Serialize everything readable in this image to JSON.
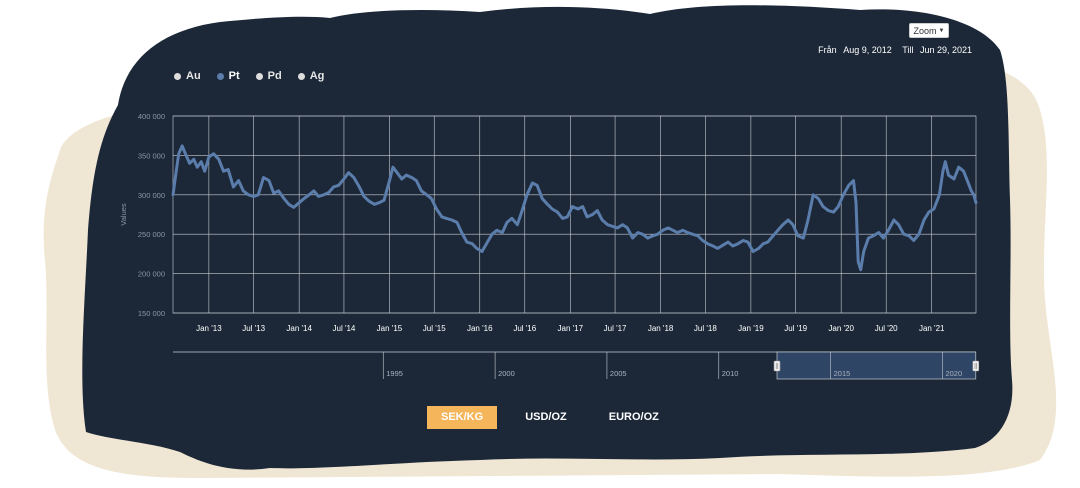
{
  "zoom_button": {
    "label": "Zoom"
  },
  "range": {
    "from_label": "Från",
    "from_value": "Aug 9, 2012",
    "to_label": "Till",
    "to_value": "Jun 29, 2021"
  },
  "legend": [
    {
      "label": "Au",
      "color": "#dddddd",
      "active": false
    },
    {
      "label": "Pt",
      "color": "#5b7dab",
      "active": true
    },
    {
      "label": "Pd",
      "color": "#dddddd",
      "active": false
    },
    {
      "label": "Ag",
      "color": "#dddddd",
      "active": false
    }
  ],
  "unit_tabs": [
    {
      "label": "SEK/KG",
      "active": true
    },
    {
      "label": "USD/OZ",
      "active": false
    },
    {
      "label": "EURO/OZ",
      "active": false
    }
  ],
  "colors": {
    "panel": "#1c2838",
    "series": "#5b7dab",
    "accent": "#f5b55a",
    "cream": "#efe6d3",
    "navigator_fill": "#2f4565"
  },
  "chart_data": {
    "type": "line",
    "ylabel": "Values",
    "ylim": [
      150000,
      400000
    ],
    "y_ticks": [
      {
        "value": 400000,
        "label": "400 000"
      },
      {
        "value": 350000,
        "label": "350 000"
      },
      {
        "value": 300000,
        "label": "300 000"
      },
      {
        "value": 250000,
        "label": "250 000"
      },
      {
        "value": 200000,
        "label": "200 000"
      },
      {
        "value": 150000,
        "label": "150 000"
      }
    ],
    "xlim": [
      "2012-08-09",
      "2021-06-29"
    ],
    "x_ticks": [
      {
        "date": "2013-01-01",
        "label": "Jan '13"
      },
      {
        "date": "2013-07-01",
        "label": "Jul '13"
      },
      {
        "date": "2014-01-01",
        "label": "Jan '14"
      },
      {
        "date": "2014-07-01",
        "label": "Jul '14"
      },
      {
        "date": "2015-01-01",
        "label": "Jan '15"
      },
      {
        "date": "2015-07-01",
        "label": "Jul '15"
      },
      {
        "date": "2016-01-01",
        "label": "Jan '16"
      },
      {
        "date": "2016-07-01",
        "label": "Jul '16"
      },
      {
        "date": "2017-01-01",
        "label": "Jan '17"
      },
      {
        "date": "2017-07-01",
        "label": "Jul '17"
      },
      {
        "date": "2018-01-01",
        "label": "Jan '18"
      },
      {
        "date": "2018-07-01",
        "label": "Jul '18"
      },
      {
        "date": "2019-01-01",
        "label": "Jan '19"
      },
      {
        "date": "2019-07-01",
        "label": "Jul '19"
      },
      {
        "date": "2020-01-01",
        "label": "Jan '20"
      },
      {
        "date": "2020-07-01",
        "label": "Jul '20"
      },
      {
        "date": "2021-01-01",
        "label": "Jan '21"
      }
    ],
    "grid": true,
    "legend_position": "top-left",
    "series": [
      {
        "name": "Pt",
        "color": "#5b7dab",
        "points": [
          [
            "2012-08-09",
            300000
          ],
          [
            "2012-08-20",
            325000
          ],
          [
            "2012-09-01",
            352000
          ],
          [
            "2012-09-15",
            362000
          ],
          [
            "2012-10-01",
            350000
          ],
          [
            "2012-10-15",
            340000
          ],
          [
            "2012-11-01",
            345000
          ],
          [
            "2012-11-15",
            335000
          ],
          [
            "2012-12-01",
            342000
          ],
          [
            "2012-12-15",
            330000
          ],
          [
            "2013-01-01",
            348000
          ],
          [
            "2013-01-20",
            352000
          ],
          [
            "2013-02-10",
            345000
          ],
          [
            "2013-03-01",
            330000
          ],
          [
            "2013-03-20",
            332000
          ],
          [
            "2013-04-10",
            310000
          ],
          [
            "2013-05-01",
            318000
          ],
          [
            "2013-05-20",
            305000
          ],
          [
            "2013-06-10",
            300000
          ],
          [
            "2013-07-01",
            298000
          ],
          [
            "2013-07-20",
            300000
          ],
          [
            "2013-08-10",
            322000
          ],
          [
            "2013-09-01",
            318000
          ],
          [
            "2013-09-20",
            302000
          ],
          [
            "2013-10-10",
            305000
          ],
          [
            "2013-11-01",
            295000
          ],
          [
            "2013-11-20",
            288000
          ],
          [
            "2013-12-10",
            284000
          ],
          [
            "2014-01-01",
            290000
          ],
          [
            "2014-01-20",
            295000
          ],
          [
            "2014-02-10",
            300000
          ],
          [
            "2014-03-01",
            305000
          ],
          [
            "2014-03-20",
            298000
          ],
          [
            "2014-04-10",
            300000
          ],
          [
            "2014-05-01",
            303000
          ],
          [
            "2014-05-20",
            310000
          ],
          [
            "2014-06-10",
            312000
          ],
          [
            "2014-07-01",
            320000
          ],
          [
            "2014-07-20",
            328000
          ],
          [
            "2014-08-10",
            322000
          ],
          [
            "2014-09-01",
            310000
          ],
          [
            "2014-09-20",
            298000
          ],
          [
            "2014-10-10",
            292000
          ],
          [
            "2014-11-01",
            288000
          ],
          [
            "2014-11-20",
            290000
          ],
          [
            "2014-12-10",
            293000
          ],
          [
            "2015-01-01",
            318000
          ],
          [
            "2015-01-15",
            335000
          ],
          [
            "2015-02-01",
            328000
          ],
          [
            "2015-02-20",
            320000
          ],
          [
            "2015-03-10",
            325000
          ],
          [
            "2015-04-01",
            322000
          ],
          [
            "2015-04-20",
            318000
          ],
          [
            "2015-05-10",
            305000
          ],
          [
            "2015-06-01",
            300000
          ],
          [
            "2015-06-20",
            295000
          ],
          [
            "2015-07-10",
            282000
          ],
          [
            "2015-08-01",
            272000
          ],
          [
            "2015-08-20",
            270000
          ],
          [
            "2015-09-10",
            268000
          ],
          [
            "2015-10-01",
            265000
          ],
          [
            "2015-10-20",
            252000
          ],
          [
            "2015-11-10",
            240000
          ],
          [
            "2015-12-01",
            238000
          ],
          [
            "2015-12-20",
            232000
          ],
          [
            "2016-01-10",
            228000
          ],
          [
            "2016-02-01",
            240000
          ],
          [
            "2016-02-20",
            250000
          ],
          [
            "2016-03-10",
            255000
          ],
          [
            "2016-04-01",
            252000
          ],
          [
            "2016-04-20",
            265000
          ],
          [
            "2016-05-10",
            270000
          ],
          [
            "2016-06-01",
            262000
          ],
          [
            "2016-06-20",
            280000
          ],
          [
            "2016-07-10",
            300000
          ],
          [
            "2016-08-01",
            315000
          ],
          [
            "2016-08-20",
            312000
          ],
          [
            "2016-09-10",
            295000
          ],
          [
            "2016-10-01",
            288000
          ],
          [
            "2016-10-20",
            282000
          ],
          [
            "2016-11-10",
            278000
          ],
          [
            "2016-12-01",
            270000
          ],
          [
            "2016-12-20",
            272000
          ],
          [
            "2017-01-10",
            285000
          ],
          [
            "2017-02-01",
            282000
          ],
          [
            "2017-02-20",
            285000
          ],
          [
            "2017-03-10",
            272000
          ],
          [
            "2017-04-01",
            275000
          ],
          [
            "2017-04-20",
            280000
          ],
          [
            "2017-05-10",
            268000
          ],
          [
            "2017-06-01",
            262000
          ],
          [
            "2017-06-20",
            260000
          ],
          [
            "2017-07-10",
            258000
          ],
          [
            "2017-08-01",
            262000
          ],
          [
            "2017-08-20",
            258000
          ],
          [
            "2017-09-10",
            245000
          ],
          [
            "2017-10-01",
            252000
          ],
          [
            "2017-10-20",
            250000
          ],
          [
            "2017-11-10",
            245000
          ],
          [
            "2017-12-01",
            248000
          ],
          [
            "2017-12-20",
            250000
          ],
          [
            "2018-01-10",
            255000
          ],
          [
            "2018-02-01",
            258000
          ],
          [
            "2018-02-20",
            255000
          ],
          [
            "2018-03-10",
            252000
          ],
          [
            "2018-04-01",
            255000
          ],
          [
            "2018-04-20",
            252000
          ],
          [
            "2018-05-10",
            250000
          ],
          [
            "2018-06-01",
            248000
          ],
          [
            "2018-06-20",
            242000
          ],
          [
            "2018-07-10",
            238000
          ],
          [
            "2018-08-01",
            235000
          ],
          [
            "2018-08-20",
            232000
          ],
          [
            "2018-09-10",
            236000
          ],
          [
            "2018-10-01",
            240000
          ],
          [
            "2018-10-20",
            235000
          ],
          [
            "2018-11-10",
            238000
          ],
          [
            "2018-12-01",
            242000
          ],
          [
            "2018-12-20",
            240000
          ],
          [
            "2019-01-10",
            228000
          ],
          [
            "2019-02-01",
            232000
          ],
          [
            "2019-02-20",
            238000
          ],
          [
            "2019-03-10",
            240000
          ],
          [
            "2019-04-01",
            248000
          ],
          [
            "2019-04-20",
            255000
          ],
          [
            "2019-05-10",
            262000
          ],
          [
            "2019-06-01",
            268000
          ],
          [
            "2019-06-20",
            262000
          ],
          [
            "2019-07-10",
            248000
          ],
          [
            "2019-08-01",
            245000
          ],
          [
            "2019-08-20",
            268000
          ],
          [
            "2019-09-10",
            300000
          ],
          [
            "2019-10-01",
            295000
          ],
          [
            "2019-10-20",
            285000
          ],
          [
            "2019-11-10",
            280000
          ],
          [
            "2019-12-01",
            278000
          ],
          [
            "2019-12-20",
            285000
          ],
          [
            "2020-01-10",
            300000
          ],
          [
            "2020-02-01",
            312000
          ],
          [
            "2020-02-20",
            318000
          ],
          [
            "2020-03-01",
            290000
          ],
          [
            "2020-03-10",
            215000
          ],
          [
            "2020-03-20",
            205000
          ],
          [
            "2020-04-01",
            228000
          ],
          [
            "2020-04-20",
            245000
          ],
          [
            "2020-05-10",
            248000
          ],
          [
            "2020-06-01",
            252000
          ],
          [
            "2020-06-20",
            245000
          ],
          [
            "2020-07-10",
            255000
          ],
          [
            "2020-08-01",
            268000
          ],
          [
            "2020-08-20",
            262000
          ],
          [
            "2020-09-10",
            250000
          ],
          [
            "2020-10-01",
            248000
          ],
          [
            "2020-10-20",
            242000
          ],
          [
            "2020-11-10",
            250000
          ],
          [
            "2020-12-01",
            268000
          ],
          [
            "2020-12-20",
            278000
          ],
          [
            "2021-01-10",
            282000
          ],
          [
            "2021-02-01",
            300000
          ],
          [
            "2021-02-15",
            330000
          ],
          [
            "2021-02-25",
            342000
          ],
          [
            "2021-03-10",
            325000
          ],
          [
            "2021-04-01",
            320000
          ],
          [
            "2021-04-20",
            335000
          ],
          [
            "2021-05-10",
            330000
          ],
          [
            "2021-05-25",
            318000
          ],
          [
            "2021-06-10",
            305000
          ],
          [
            "2021-06-20",
            300000
          ],
          [
            "2021-06-29",
            290000
          ]
        ]
      }
    ],
    "navigator": {
      "year_labels": [
        {
          "year": 1995,
          "label": "1995"
        },
        {
          "year": 2000,
          "label": "2000"
        },
        {
          "year": 2005,
          "label": "2005"
        },
        {
          "year": 2010,
          "label": "2010"
        },
        {
          "year": 2015,
          "label": "2015"
        },
        {
          "year": 2020,
          "label": "2020"
        }
      ],
      "selected_range": [
        "2012-08-09",
        "2021-06-29"
      ]
    }
  }
}
